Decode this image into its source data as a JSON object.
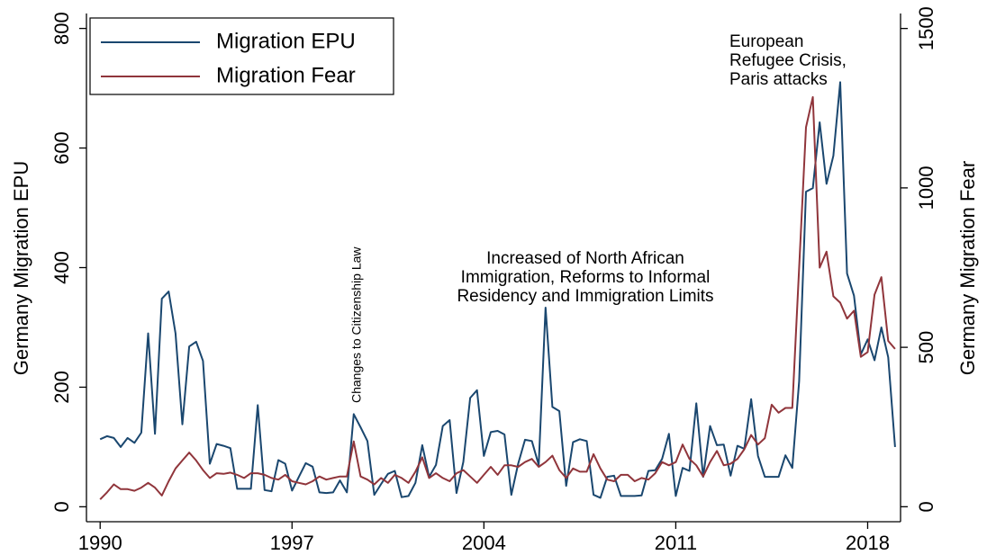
{
  "chart_data": {
    "type": "line",
    "y_label": "Germany Migration EPU",
    "y2_label": "Germany Migration Fear",
    "x": [
      1990,
      1990.25,
      1990.5,
      1990.75,
      1991,
      1991.25,
      1991.5,
      1991.75,
      1992,
      1992.25,
      1992.5,
      1992.75,
      1993,
      1993.25,
      1993.5,
      1993.75,
      1994,
      1994.25,
      1994.5,
      1994.75,
      1995,
      1995.25,
      1995.5,
      1995.75,
      1996,
      1996.25,
      1996.5,
      1996.75,
      1997,
      1997.25,
      1997.5,
      1997.75,
      1998,
      1998.25,
      1998.5,
      1998.75,
      1999,
      1999.25,
      1999.5,
      1999.75,
      2000,
      2000.25,
      2000.5,
      2000.75,
      2001,
      2001.25,
      2001.5,
      2001.75,
      2002,
      2002.25,
      2002.5,
      2002.75,
      2003,
      2003.25,
      2003.5,
      2003.75,
      2004,
      2004.25,
      2004.5,
      2004.75,
      2005,
      2005.25,
      2005.5,
      2005.75,
      2006,
      2006.25,
      2006.5,
      2006.75,
      2007,
      2007.25,
      2007.5,
      2007.75,
      2008,
      2008.25,
      2008.5,
      2008.75,
      2009,
      2009.25,
      2009.5,
      2009.75,
      2010,
      2010.25,
      2010.5,
      2010.75,
      2011,
      2011.25,
      2011.5,
      2011.75,
      2012,
      2012.25,
      2012.5,
      2012.75,
      2013,
      2013.25,
      2013.5,
      2013.75,
      2014,
      2014.25,
      2014.5,
      2014.75,
      2015,
      2015.25,
      2015.5,
      2015.75,
      2016,
      2016.25,
      2016.5,
      2016.75,
      2017,
      2017.25,
      2017.5,
      2017.75,
      2018,
      2018.25,
      2018.5,
      2018.75,
      2019
    ],
    "series": [
      {
        "name": "Migration EPU",
        "color": "#1a476f",
        "values": [
          113,
          118,
          115,
          100,
          115,
          107,
          124,
          290,
          122,
          348,
          360,
          290,
          138,
          268,
          276,
          244,
          72,
          105,
          102,
          98,
          30,
          30,
          30,
          170,
          28,
          26,
          78,
          72,
          27,
          50,
          73,
          67,
          24,
          23,
          24,
          44,
          24,
          155,
          133,
          110,
          20,
          38,
          55,
          60,
          16,
          18,
          40,
          103,
          50,
          70,
          135,
          145,
          23,
          75,
          182,
          195,
          85,
          125,
          127,
          121,
          20,
          72,
          112,
          110,
          70,
          333,
          167,
          160,
          35,
          108,
          113,
          110,
          20,
          15,
          50,
          52,
          18,
          18,
          18,
          19,
          60,
          61,
          80,
          122,
          18,
          65,
          60,
          173,
          50,
          135,
          103,
          104,
          52,
          102,
          97,
          180,
          85,
          50,
          50,
          50,
          86,
          65,
          210,
          527,
          533,
          643,
          540,
          587,
          710,
          390,
          353,
          255,
          280,
          245,
          300,
          250,
          100
        ]
      },
      {
        "name": "Migration Fear",
        "color": "#90353b",
        "axis": "y2",
        "values": [
          23,
          45,
          70,
          55,
          55,
          50,
          60,
          75,
          60,
          35,
          80,
          120,
          145,
          170,
          145,
          115,
          90,
          105,
          103,
          107,
          100,
          90,
          105,
          105,
          100,
          90,
          85,
          100,
          80,
          75,
          70,
          80,
          95,
          85,
          90,
          95,
          95,
          205,
          95,
          85,
          70,
          90,
          75,
          100,
          90,
          75,
          110,
          155,
          90,
          105,
          90,
          80,
          105,
          115,
          95,
          75,
          100,
          125,
          100,
          130,
          130,
          125,
          140,
          150,
          125,
          140,
          160,
          115,
          90,
          120,
          110,
          110,
          165,
          120,
          85,
          80,
          100,
          100,
          80,
          90,
          85,
          105,
          140,
          130,
          140,
          195,
          150,
          130,
          95,
          140,
          175,
          130,
          135,
          150,
          180,
          225,
          195,
          215,
          320,
          295,
          310,
          310,
          750,
          1190,
          1285,
          750,
          800,
          660,
          640,
          590,
          615,
          470,
          485,
          665,
          720,
          520,
          495
        ]
      }
    ],
    "xlim": [
      1989.5,
      2019.2
    ],
    "xticks": [
      1990,
      1997,
      2004,
      2011,
      2018
    ],
    "ylim": [
      -25,
      825
    ],
    "yticks": [
      0,
      200,
      400,
      600,
      800
    ],
    "y2lim": [
      -47,
      1547
    ],
    "y2ticks": [
      0,
      500,
      1000,
      1500
    ],
    "legend": "top-left",
    "grid": false,
    "annotations": [
      {
        "lines": [
          "Changes to Citizenship Law"
        ]
      },
      {
        "lines": [
          "Increased of North African",
          "Immigration, Reforms to Informal",
          "Residency and Immigration Limits"
        ]
      },
      {
        "lines": [
          "European",
          "Refugee Crisis,",
          "Paris attacks"
        ]
      }
    ]
  }
}
